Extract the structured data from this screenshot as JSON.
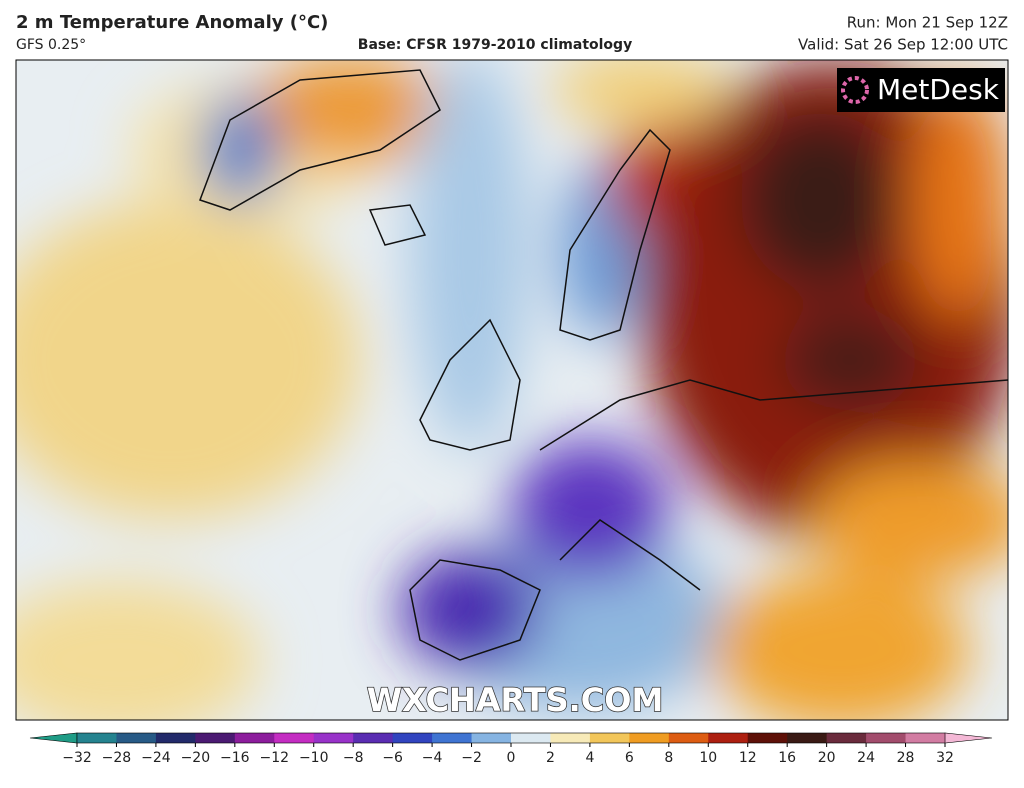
{
  "header": {
    "title": "2 m Temperature Anomaly (°C)",
    "model": "GFS 0.25°",
    "base": "Base: CFSR 1979-2010 climatology",
    "run": "Run: Mon 21 Sep 12Z",
    "valid": "Valid: Sat 26 Sep 12:00 UTC"
  },
  "map": {
    "logo": "MetDesk",
    "watermark": "WXCHARTS.COM"
  },
  "colorbar": {
    "ticks": [
      {
        "value": -32,
        "label": "−32"
      },
      {
        "value": -28,
        "label": "−28"
      },
      {
        "value": -24,
        "label": "−24"
      },
      {
        "value": -20,
        "label": "−20"
      },
      {
        "value": -16,
        "label": "−16"
      },
      {
        "value": -12,
        "label": "−12"
      },
      {
        "value": -10,
        "label": "−10"
      },
      {
        "value": -8,
        "label": "−8"
      },
      {
        "value": -6,
        "label": "−6"
      },
      {
        "value": -4,
        "label": "−4"
      },
      {
        "value": -2,
        "label": "−2"
      },
      0,
      2,
      4,
      6,
      8,
      10,
      12,
      16,
      20,
      24,
      28,
      32
    ],
    "under_color": "#1f9c86",
    "over_color": "#f4b8d6",
    "colors": [
      "#24838f",
      "#275a86",
      "#222a6a",
      "#4b1a72",
      "#8c1d9c",
      "#c42dc2",
      "#9832c9",
      "#5a2db2",
      "#3144bf",
      "#3f74d2",
      "#86b4e2",
      "#dce9f1",
      "#f7eab8",
      "#f2c65a",
      "#ef9c22",
      "#dd5c12",
      "#ad1f10",
      "#5e1008",
      "#3a1a14",
      "#6a2b3c",
      "#a24c6c",
      "#d27ca2"
    ]
  }
}
